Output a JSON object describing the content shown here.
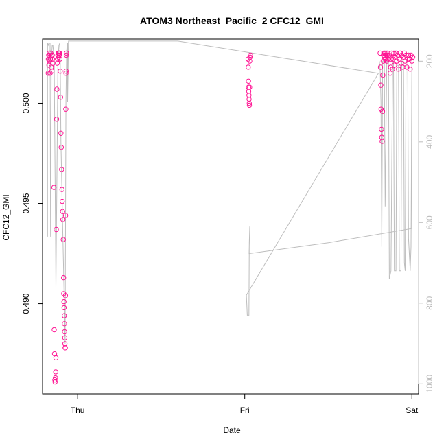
{
  "chart_data": {
    "type": "scatter",
    "title": "ATOM3 Northeast_Pacific_2 CFC12_GMI",
    "xlabel": "Date",
    "ylabel": "CFC12_GMI",
    "x_ticks": [
      {
        "label": "Thu",
        "value": 0
      },
      {
        "label": "Fri",
        "value": 1
      },
      {
        "label": "Sat",
        "value": 2
      }
    ],
    "xlim": [
      -0.21,
      2.04
    ],
    "ylim": [
      0.4855,
      0.5032
    ],
    "y_ticks": [
      0.49,
      0.495,
      0.5
    ],
    "y2_ticks": [
      200,
      400,
      600,
      800,
      1000
    ],
    "y2lim": [
      1025,
      145
    ],
    "point_color": "#ff1493",
    "line_color": "#bdbdbd",
    "series": [
      {
        "kind": "points",
        "points": [
          [
            -0.176,
            0.5015
          ],
          [
            -0.175,
            0.5022
          ],
          [
            -0.173,
            0.5024
          ],
          [
            -0.172,
            0.5019
          ],
          [
            -0.17,
            0.5025
          ],
          [
            -0.168,
            0.5021
          ],
          [
            -0.165,
            0.5015
          ],
          [
            -0.163,
            0.5022
          ],
          [
            -0.161,
            0.5025
          ],
          [
            -0.158,
            0.5018
          ],
          [
            -0.156,
            0.5024
          ],
          [
            -0.154,
            0.5016
          ],
          [
            -0.152,
            0.5024
          ],
          [
            -0.15,
            0.5022
          ],
          [
            -0.148,
            0.502
          ],
          [
            -0.142,
            0.4958
          ],
          [
            -0.14,
            0.4887
          ],
          [
            -0.138,
            0.4875
          ],
          [
            -0.136,
            0.4862
          ],
          [
            -0.135,
            0.4861
          ],
          [
            -0.133,
            0.4863
          ],
          [
            -0.131,
            0.4866
          ],
          [
            -0.13,
            0.4873
          ],
          [
            -0.128,
            0.4937
          ],
          [
            -0.126,
            0.4992
          ],
          [
            -0.124,
            0.5007
          ],
          [
            -0.122,
            0.502
          ],
          [
            -0.12,
            0.5022
          ],
          [
            -0.118,
            0.5024
          ],
          [
            -0.116,
            0.5025
          ],
          [
            -0.114,
            0.5023
          ],
          [
            -0.112,
            0.5025
          ],
          [
            -0.11,
            0.5024
          ],
          [
            -0.108,
            0.5025
          ],
          [
            -0.106,
            0.5022
          ],
          [
            -0.104,
            0.5016
          ],
          [
            -0.102,
            0.5003
          ],
          [
            -0.1,
            0.4985
          ],
          [
            -0.098,
            0.4978
          ],
          [
            -0.096,
            0.4967
          ],
          [
            -0.094,
            0.4957
          ],
          [
            -0.092,
            0.4951
          ],
          [
            -0.09,
            0.4946
          ],
          [
            -0.088,
            0.4942
          ],
          [
            -0.086,
            0.4932
          ],
          [
            -0.084,
            0.4913
          ],
          [
            -0.083,
            0.4905
          ],
          [
            -0.082,
            0.4901
          ],
          [
            -0.081,
            0.4898
          ],
          [
            -0.08,
            0.4894
          ],
          [
            -0.079,
            0.489
          ],
          [
            -0.078,
            0.4886
          ],
          [
            -0.077,
            0.4883
          ],
          [
            -0.076,
            0.488
          ],
          [
            -0.075,
            0.4878
          ],
          [
            -0.074,
            0.4878
          ],
          [
            -0.073,
            0.4904
          ],
          [
            -0.072,
            0.4944
          ],
          [
            -0.071,
            0.4997
          ],
          [
            -0.07,
            0.5015
          ],
          [
            -0.069,
            0.5016
          ],
          [
            -0.068,
            0.5024
          ],
          [
            -0.067,
            0.5025
          ],
          [
            1.02,
            0.5022
          ],
          [
            1.021,
            0.5018
          ],
          [
            1.022,
            0.5011
          ],
          [
            1.023,
            0.5008
          ],
          [
            1.024,
            0.5006
          ],
          [
            1.025,
            0.5004
          ],
          [
            1.026,
            0.5002
          ],
          [
            1.027,
            0.5
          ],
          [
            1.028,
            0.4999
          ],
          [
            1.029,
            0.5008
          ],
          [
            1.03,
            0.5021
          ],
          [
            1.032,
            0.5023
          ],
          [
            1.034,
            0.5024
          ],
          [
            1.81,
            0.5025
          ],
          [
            1.812,
            0.5018
          ],
          [
            1.814,
            0.5009
          ],
          [
            1.816,
            0.4997
          ],
          [
            1.818,
            0.4987
          ],
          [
            1.82,
            0.4983
          ],
          [
            1.822,
            0.4981
          ],
          [
            1.824,
            0.4996
          ],
          [
            1.826,
            0.5014
          ],
          [
            1.828,
            0.5021
          ],
          [
            1.83,
            0.5024
          ],
          [
            1.832,
            0.5025
          ],
          [
            1.835,
            0.5023
          ],
          [
            1.838,
            0.5025
          ],
          [
            1.84,
            0.5022
          ],
          [
            1.843,
            0.5024
          ],
          [
            1.846,
            0.5025
          ],
          [
            1.849,
            0.5021
          ],
          [
            1.852,
            0.5024
          ],
          [
            1.855,
            0.5025
          ],
          [
            1.86,
            0.5022
          ],
          [
            1.865,
            0.5024
          ],
          [
            1.87,
            0.5015
          ],
          [
            1.873,
            0.5018
          ],
          [
            1.876,
            0.5022
          ],
          [
            1.88,
            0.5025
          ],
          [
            1.884,
            0.5017
          ],
          [
            1.888,
            0.5022
          ],
          [
            1.892,
            0.5025
          ],
          [
            1.896,
            0.5019
          ],
          [
            1.9,
            0.5023
          ],
          [
            1.905,
            0.5025
          ],
          [
            1.91,
            0.5021
          ],
          [
            1.915,
            0.5024
          ],
          [
            1.92,
            0.5017
          ],
          [
            1.925,
            0.5022
          ],
          [
            1.93,
            0.5025
          ],
          [
            1.935,
            0.502
          ],
          [
            1.94,
            0.5024
          ],
          [
            1.945,
            0.5018
          ],
          [
            1.95,
            0.5023
          ],
          [
            1.955,
            0.5025
          ],
          [
            1.96,
            0.5021
          ],
          [
            1.965,
            0.5024
          ],
          [
            1.97,
            0.5018
          ],
          [
            1.975,
            0.5022
          ],
          [
            1.98,
            0.5024
          ],
          [
            1.985,
            0.5022
          ],
          [
            1.99,
            0.5017
          ],
          [
            1.995,
            0.5024
          ],
          [
            2.0,
            0.5021
          ],
          [
            2.005,
            0.5023
          ]
        ]
      },
      {
        "kind": "line",
        "axis": "right",
        "points": [
          [
            -0.18,
            635
          ],
          [
            -0.18,
            155
          ],
          [
            -0.176,
            160
          ],
          [
            -0.172,
            155
          ],
          [
            -0.165,
            155
          ],
          [
            -0.162,
            635
          ],
          [
            -0.158,
            200
          ],
          [
            -0.152,
            160
          ],
          [
            -0.148,
            160
          ],
          [
            -0.14,
            200
          ],
          [
            -0.13,
            760
          ],
          [
            -0.124,
            500
          ],
          [
            -0.118,
            200
          ],
          [
            -0.112,
            160
          ],
          [
            -0.107,
            155
          ],
          [
            -0.104,
            200
          ],
          [
            -0.1,
            400
          ],
          [
            -0.09,
            600
          ],
          [
            -0.08,
            800
          ],
          [
            -0.075,
            900
          ],
          [
            -0.07,
            300
          ],
          [
            -0.066,
            180
          ],
          [
            -0.063,
            155
          ],
          [
            -0.06,
            155
          ],
          [
            -0.06,
            300
          ],
          [
            -0.055,
            150
          ],
          [
            0.6,
            150
          ],
          [
            1.8,
            230
          ],
          [
            1.01,
            780
          ],
          [
            1.015,
            830
          ],
          [
            1.025,
            830
          ],
          [
            1.027,
            650
          ],
          [
            1.03,
            610
          ],
          [
            1.026,
            677
          ],
          [
            1.5,
            650
          ],
          [
            2.0,
            615
          ],
          [
            2.0,
            195
          ],
          [
            1.995,
            660
          ],
          [
            1.99,
            720
          ],
          [
            1.98,
            640
          ],
          [
            1.975,
            200
          ],
          [
            1.965,
            200
          ],
          [
            1.96,
            720
          ],
          [
            1.955,
            700
          ],
          [
            1.95,
            200
          ],
          [
            1.94,
            200
          ],
          [
            1.935,
            720
          ],
          [
            1.925,
            720
          ],
          [
            1.92,
            210
          ],
          [
            1.91,
            210
          ],
          [
            1.905,
            720
          ],
          [
            1.895,
            720
          ],
          [
            1.89,
            200
          ],
          [
            1.885,
            200
          ],
          [
            1.875,
            720
          ],
          [
            1.865,
            740
          ],
          [
            1.86,
            200
          ],
          [
            1.85,
            200
          ],
          [
            1.84,
            560
          ],
          [
            1.835,
            200
          ],
          [
            1.825,
            200
          ],
          [
            1.82,
            660
          ],
          [
            1.815,
            300
          ],
          [
            1.81,
            220
          ],
          [
            1.805,
            200
          ]
        ]
      }
    ]
  }
}
